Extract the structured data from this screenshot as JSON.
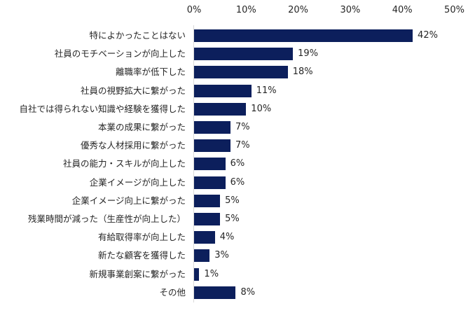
{
  "chart_data": {
    "type": "bar",
    "orientation": "horizontal",
    "title": "",
    "xlabel": "",
    "ylabel": "",
    "xlim": [
      0,
      50
    ],
    "x_ticks": [
      "0%",
      "10%",
      "20%",
      "30%",
      "40%",
      "50%"
    ],
    "tick_position": "top",
    "grid": false,
    "legend": null,
    "bar_color": "#0c1f5c",
    "categories": [
      "特によかったことはない",
      "社員のモチベーションが向上した",
      "離職率が低下した",
      "社員の視野拡大に繋がった",
      "自社では得られない知識や経験を獲得した",
      "本業の成果に繋がった",
      "優秀な人材採用に繋がった",
      "社員の能力・スキルが向上した",
      "企業イメージが向上した",
      "企業イメージ向上に繋がった",
      "残業時間が減った（生産性が向上した）",
      "有給取得率が向上した",
      "新たな顧客を獲得した",
      "新規事業創案に繋がった",
      "その他"
    ],
    "values": [
      42,
      19,
      18,
      11,
      10,
      7,
      7,
      6,
      6,
      5,
      5,
      4,
      3,
      1,
      8
    ],
    "value_labels": [
      "42%",
      "19%",
      "18%",
      "11%",
      "10%",
      "7%",
      "7%",
      "6%",
      "6%",
      "5%",
      "5%",
      "4%",
      "3%",
      "1%",
      "8%"
    ]
  }
}
